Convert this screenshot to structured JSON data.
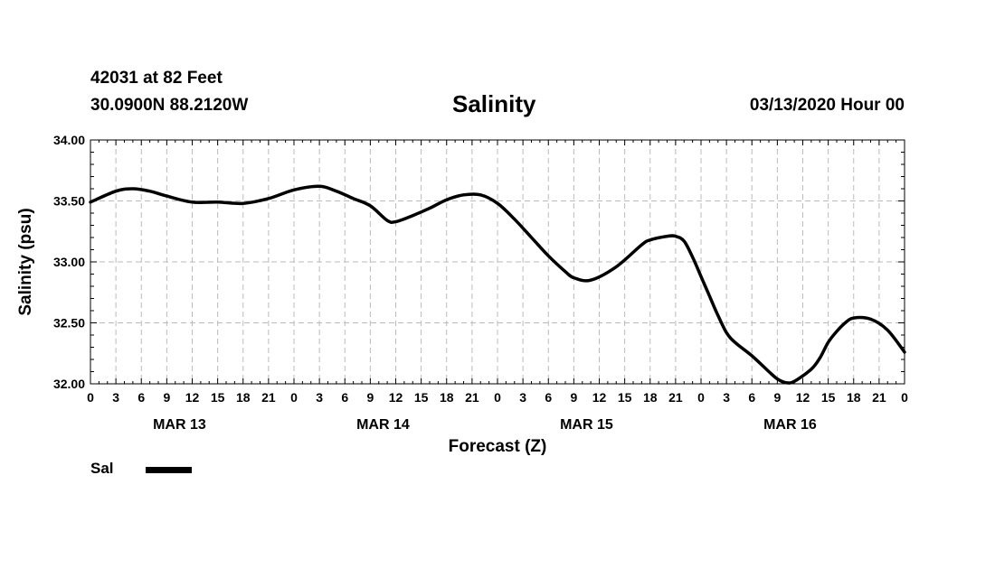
{
  "header": {
    "station": "42031 at 82 Feet",
    "position": "30.0900N 88.2120W",
    "title": "Salinity",
    "forecast": "03/13/2020 Hour 00"
  },
  "chart_data": {
    "type": "line",
    "title": "Salinity",
    "xlabel": "Forecast (Z)",
    "ylabel": "Salinity (psu)",
    "ylim": [
      32.0,
      34.0
    ],
    "xlim": [
      0,
      96
    ],
    "yticks": [
      "32.00",
      "32.50",
      "33.00",
      "33.50",
      "34.00"
    ],
    "xtick_labels": [
      "0",
      "3",
      "6",
      "9",
      "12",
      "15",
      "18",
      "21",
      "0",
      "3",
      "6",
      "9",
      "12",
      "15",
      "18",
      "21",
      "0",
      "3",
      "6",
      "9",
      "12",
      "15",
      "18",
      "21",
      "0",
      "3",
      "6",
      "9",
      "12",
      "15",
      "18",
      "21",
      "0"
    ],
    "day_labels": [
      "MAR 13",
      "MAR 14",
      "MAR 15",
      "MAR 16"
    ],
    "grid": true,
    "series": [
      {
        "name": "Sal",
        "color": "#000000",
        "x": [
          0,
          3,
          5,
          7,
          9,
          12,
          15,
          18,
          21,
          24,
          27,
          29,
          31,
          33,
          35,
          36,
          38,
          40,
          42,
          44,
          46,
          48,
          50,
          52,
          54,
          56,
          57,
          59,
          62,
          65,
          66,
          68,
          69,
          70,
          71,
          72,
          73,
          74,
          75,
          76,
          78,
          80,
          81,
          82,
          83,
          85,
          86,
          87,
          88,
          89,
          90,
          92,
          94,
          96
        ],
        "values": [
          33.49,
          33.58,
          33.6,
          33.58,
          33.54,
          33.49,
          33.49,
          33.48,
          33.52,
          33.59,
          33.62,
          33.58,
          33.52,
          33.46,
          33.34,
          33.33,
          33.38,
          33.44,
          33.51,
          33.55,
          33.55,
          33.48,
          33.35,
          33.2,
          33.05,
          32.92,
          32.87,
          32.85,
          32.96,
          33.14,
          33.18,
          33.21,
          33.21,
          33.17,
          33.04,
          32.88,
          32.72,
          32.56,
          32.42,
          32.34,
          32.23,
          32.1,
          32.04,
          32.01,
          32.02,
          32.12,
          32.21,
          32.34,
          32.43,
          32.5,
          32.54,
          32.53,
          32.44,
          32.26
        ]
      }
    ],
    "legend": [
      {
        "label": "Sal",
        "position": "bottom-left"
      }
    ]
  }
}
